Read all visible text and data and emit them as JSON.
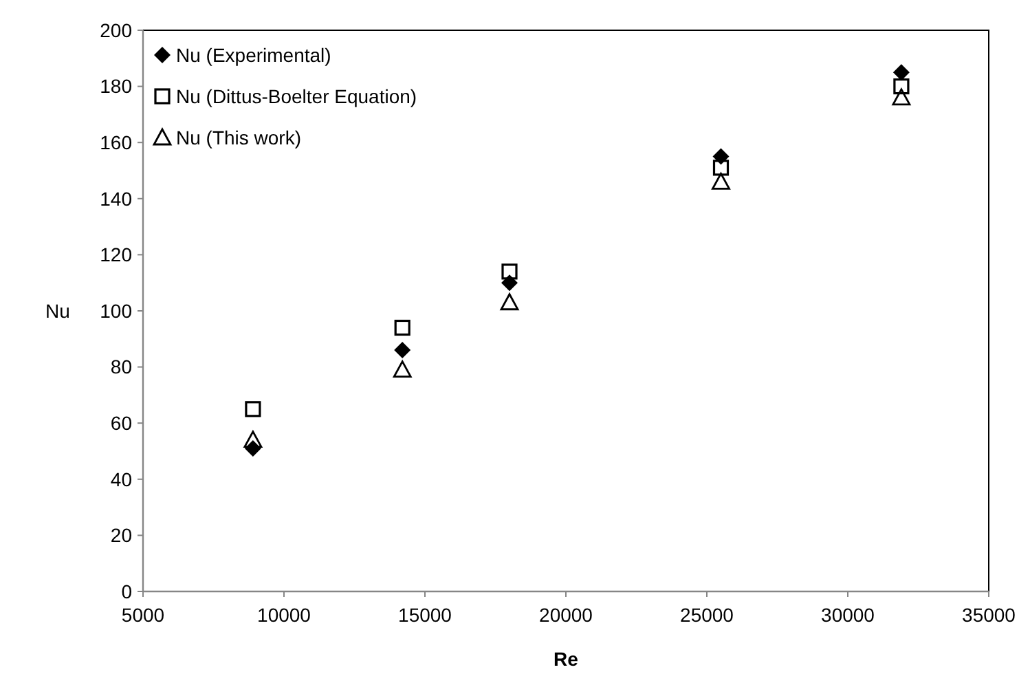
{
  "chart_data": {
    "type": "scatter",
    "xlabel": "Re",
    "ylabel": "Nu",
    "xlim": [
      5000,
      35000
    ],
    "ylim": [
      0,
      200
    ],
    "xticks": [
      5000,
      10000,
      15000,
      20000,
      25000,
      30000,
      35000
    ],
    "yticks": [
      0,
      20,
      40,
      60,
      80,
      100,
      120,
      140,
      160,
      180,
      200
    ],
    "grid": false,
    "legend": "top left",
    "series": [
      {
        "name": "Nu (Experimental)",
        "color": "#000000",
        "marker": "diamond",
        "x": [
          8900,
          14200,
          18000,
          25500,
          31900
        ],
        "values": [
          51,
          86,
          110,
          155,
          185
        ]
      },
      {
        "name": "Nu (Dittus-Boelter Equation)",
        "color": "#000000",
        "marker": "square",
        "x": [
          8900,
          14200,
          18000,
          25500,
          31900
        ],
        "values": [
          65,
          94,
          114,
          151,
          180
        ]
      },
      {
        "name": "Nu (This work)",
        "color": "#000000",
        "marker": "triangle",
        "x": [
          8900,
          14200,
          18000,
          25500,
          31900
        ],
        "values": [
          54,
          79,
          103,
          146,
          176
        ]
      }
    ]
  }
}
